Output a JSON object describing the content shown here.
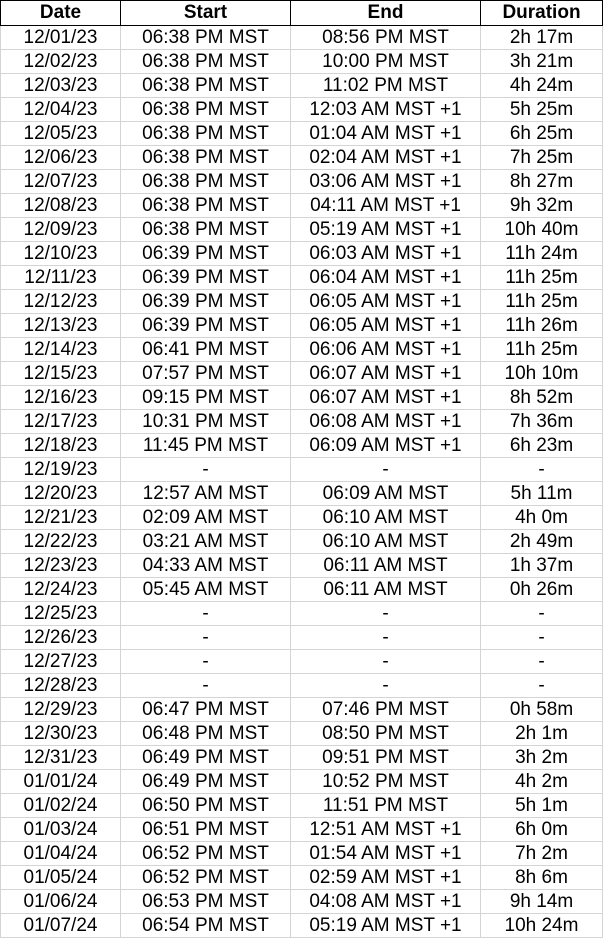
{
  "table": {
    "headers": [
      "Date",
      "Start",
      "End",
      "Duration"
    ],
    "rows": [
      [
        "12/01/23",
        "06:38 PM MST",
        "08:56 PM MST",
        "2h 17m"
      ],
      [
        "12/02/23",
        "06:38 PM MST",
        "10:00 PM MST",
        "3h 21m"
      ],
      [
        "12/03/23",
        "06:38 PM MST",
        "11:02 PM MST",
        "4h 24m"
      ],
      [
        "12/04/23",
        "06:38 PM MST",
        "12:03 AM MST +1",
        "5h 25m"
      ],
      [
        "12/05/23",
        "06:38 PM MST",
        "01:04 AM MST +1",
        "6h 25m"
      ],
      [
        "12/06/23",
        "06:38 PM MST",
        "02:04 AM MST +1",
        "7h 25m"
      ],
      [
        "12/07/23",
        "06:38 PM MST",
        "03:06 AM MST +1",
        "8h 27m"
      ],
      [
        "12/08/23",
        "06:38 PM MST",
        "04:11 AM MST +1",
        "9h 32m"
      ],
      [
        "12/09/23",
        "06:38 PM MST",
        "05:19 AM MST +1",
        "10h 40m"
      ],
      [
        "12/10/23",
        "06:39 PM MST",
        "06:03 AM MST +1",
        "11h 24m"
      ],
      [
        "12/11/23",
        "06:39 PM MST",
        "06:04 AM MST +1",
        "11h 25m"
      ],
      [
        "12/12/23",
        "06:39 PM MST",
        "06:05 AM MST +1",
        "11h 25m"
      ],
      [
        "12/13/23",
        "06:39 PM MST",
        "06:05 AM MST +1",
        "11h 26m"
      ],
      [
        "12/14/23",
        "06:41 PM MST",
        "06:06 AM MST +1",
        "11h 25m"
      ],
      [
        "12/15/23",
        "07:57 PM MST",
        "06:07 AM MST +1",
        "10h 10m"
      ],
      [
        "12/16/23",
        "09:15 PM MST",
        "06:07 AM MST +1",
        "8h 52m"
      ],
      [
        "12/17/23",
        "10:31 PM MST",
        "06:08 AM MST +1",
        "7h 36m"
      ],
      [
        "12/18/23",
        "11:45 PM MST",
        "06:09 AM MST +1",
        "6h 23m"
      ],
      [
        "12/19/23",
        "-",
        "-",
        "-"
      ],
      [
        "12/20/23",
        "12:57 AM MST",
        "06:09 AM MST",
        "5h 11m"
      ],
      [
        "12/21/23",
        "02:09 AM MST",
        "06:10 AM MST",
        "4h 0m"
      ],
      [
        "12/22/23",
        "03:21 AM MST",
        "06:10 AM MST",
        "2h 49m"
      ],
      [
        "12/23/23",
        "04:33 AM MST",
        "06:11 AM MST",
        "1h 37m"
      ],
      [
        "12/24/23",
        "05:45 AM MST",
        "06:11 AM MST",
        "0h 26m"
      ],
      [
        "12/25/23",
        "-",
        "-",
        "-"
      ],
      [
        "12/26/23",
        "-",
        "-",
        "-"
      ],
      [
        "12/27/23",
        "-",
        "-",
        "-"
      ],
      [
        "12/28/23",
        "-",
        "-",
        "-"
      ],
      [
        "12/29/23",
        "06:47 PM MST",
        "07:46 PM MST",
        "0h 58m"
      ],
      [
        "12/30/23",
        "06:48 PM MST",
        "08:50 PM MST",
        "2h 1m"
      ],
      [
        "12/31/23",
        "06:49 PM MST",
        "09:51 PM MST",
        "3h 2m"
      ],
      [
        "01/01/24",
        "06:49 PM MST",
        "10:52 PM MST",
        "4h 2m"
      ],
      [
        "01/02/24",
        "06:50 PM MST",
        "11:51 PM MST",
        "5h 1m"
      ],
      [
        "01/03/24",
        "06:51 PM MST",
        "12:51 AM MST +1",
        "6h 0m"
      ],
      [
        "01/04/24",
        "06:52 PM MST",
        "01:54 AM MST +1",
        "7h 2m"
      ],
      [
        "01/05/24",
        "06:52 PM MST",
        "02:59 AM MST +1",
        "8h 6m"
      ],
      [
        "01/06/24",
        "06:53 PM MST",
        "04:08 AM MST +1",
        "9h 14m"
      ],
      [
        "01/07/24",
        "06:54 PM MST",
        "05:19 AM MST +1",
        "10h 24m"
      ]
    ]
  }
}
